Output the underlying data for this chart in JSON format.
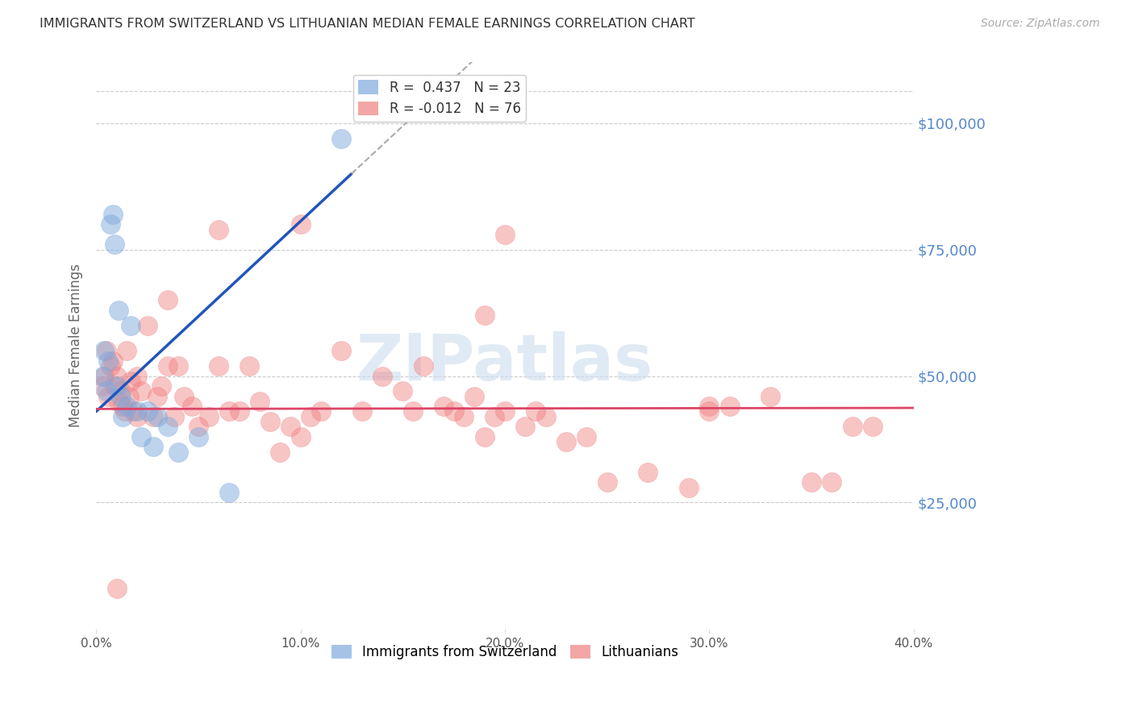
{
  "title": "IMMIGRANTS FROM SWITZERLAND VS LITHUANIAN MEDIAN FEMALE EARNINGS CORRELATION CHART",
  "source": "Source: ZipAtlas.com",
  "ylabel": "Median Female Earnings",
  "xlim": [
    0.0,
    0.4
  ],
  "ylim": [
    0,
    112000
  ],
  "background_color": "#ffffff",
  "swiss_color": "#7faadd",
  "swiss_line_color": "#2255bb",
  "lith_color": "#f08080",
  "lith_line_color": "#dd4466",
  "dash_color": "#aaaaaa",
  "swiss_R": 0.437,
  "swiss_N": 23,
  "lith_R": -0.012,
  "lith_N": 76,
  "axis_label_color": "#5588cc",
  "watermark": "ZIPatlas",
  "swiss_points_x": [
    0.003,
    0.004,
    0.005,
    0.006,
    0.007,
    0.008,
    0.009,
    0.01,
    0.011,
    0.012,
    0.013,
    0.015,
    0.017,
    0.02,
    0.022,
    0.025,
    0.028,
    0.03,
    0.035,
    0.04,
    0.05,
    0.065,
    0.12
  ],
  "swiss_points_y": [
    50000,
    55000,
    47000,
    53000,
    80000,
    82000,
    76000,
    48000,
    63000,
    46000,
    42000,
    44000,
    60000,
    43000,
    38000,
    43000,
    36000,
    42000,
    40000,
    35000,
    38000,
    27000,
    97000
  ],
  "lith_points_x": [
    0.003,
    0.004,
    0.005,
    0.006,
    0.007,
    0.008,
    0.009,
    0.01,
    0.011,
    0.012,
    0.013,
    0.014,
    0.015,
    0.016,
    0.017,
    0.018,
    0.02,
    0.022,
    0.025,
    0.028,
    0.03,
    0.032,
    0.035,
    0.038,
    0.04,
    0.043,
    0.047,
    0.05,
    0.055,
    0.06,
    0.065,
    0.07,
    0.075,
    0.08,
    0.085,
    0.09,
    0.095,
    0.1,
    0.105,
    0.11,
    0.12,
    0.13,
    0.14,
    0.15,
    0.155,
    0.16,
    0.17,
    0.175,
    0.18,
    0.185,
    0.19,
    0.195,
    0.2,
    0.21,
    0.215,
    0.22,
    0.23,
    0.24,
    0.25,
    0.27,
    0.29,
    0.3,
    0.31,
    0.33,
    0.35,
    0.36,
    0.37,
    0.38,
    0.19,
    0.2,
    0.1,
    0.06,
    0.035,
    0.02,
    0.01,
    0.3
  ],
  "lith_points_y": [
    48000,
    50000,
    55000,
    46000,
    52000,
    53000,
    48000,
    50000,
    45000,
    47000,
    44000,
    43000,
    55000,
    46000,
    49000,
    43000,
    50000,
    47000,
    60000,
    42000,
    46000,
    48000,
    52000,
    42000,
    52000,
    46000,
    44000,
    40000,
    42000,
    52000,
    43000,
    43000,
    52000,
    45000,
    41000,
    35000,
    40000,
    38000,
    42000,
    43000,
    55000,
    43000,
    50000,
    47000,
    43000,
    52000,
    44000,
    43000,
    42000,
    46000,
    38000,
    42000,
    43000,
    40000,
    43000,
    42000,
    37000,
    38000,
    29000,
    31000,
    28000,
    43000,
    44000,
    46000,
    29000,
    29000,
    40000,
    40000,
    62000,
    78000,
    80000,
    79000,
    65000,
    42000,
    8000,
    44000
  ],
  "swiss_line_x0": 0.0,
  "swiss_line_y0": 43000,
  "swiss_line_x1": 0.125,
  "swiss_line_y1": 90000,
  "lith_line_y": 43500,
  "yticks": [
    25000,
    50000,
    75000,
    100000
  ],
  "ytick_labels": [
    "$25,000",
    "$50,000",
    "$75,000",
    "$100,000"
  ],
  "xticks": [
    0.0,
    0.1,
    0.2,
    0.3,
    0.4
  ],
  "xtick_labels": [
    "0.0%",
    "10.0%",
    "20.0%",
    "30.0%",
    "40.0%"
  ]
}
